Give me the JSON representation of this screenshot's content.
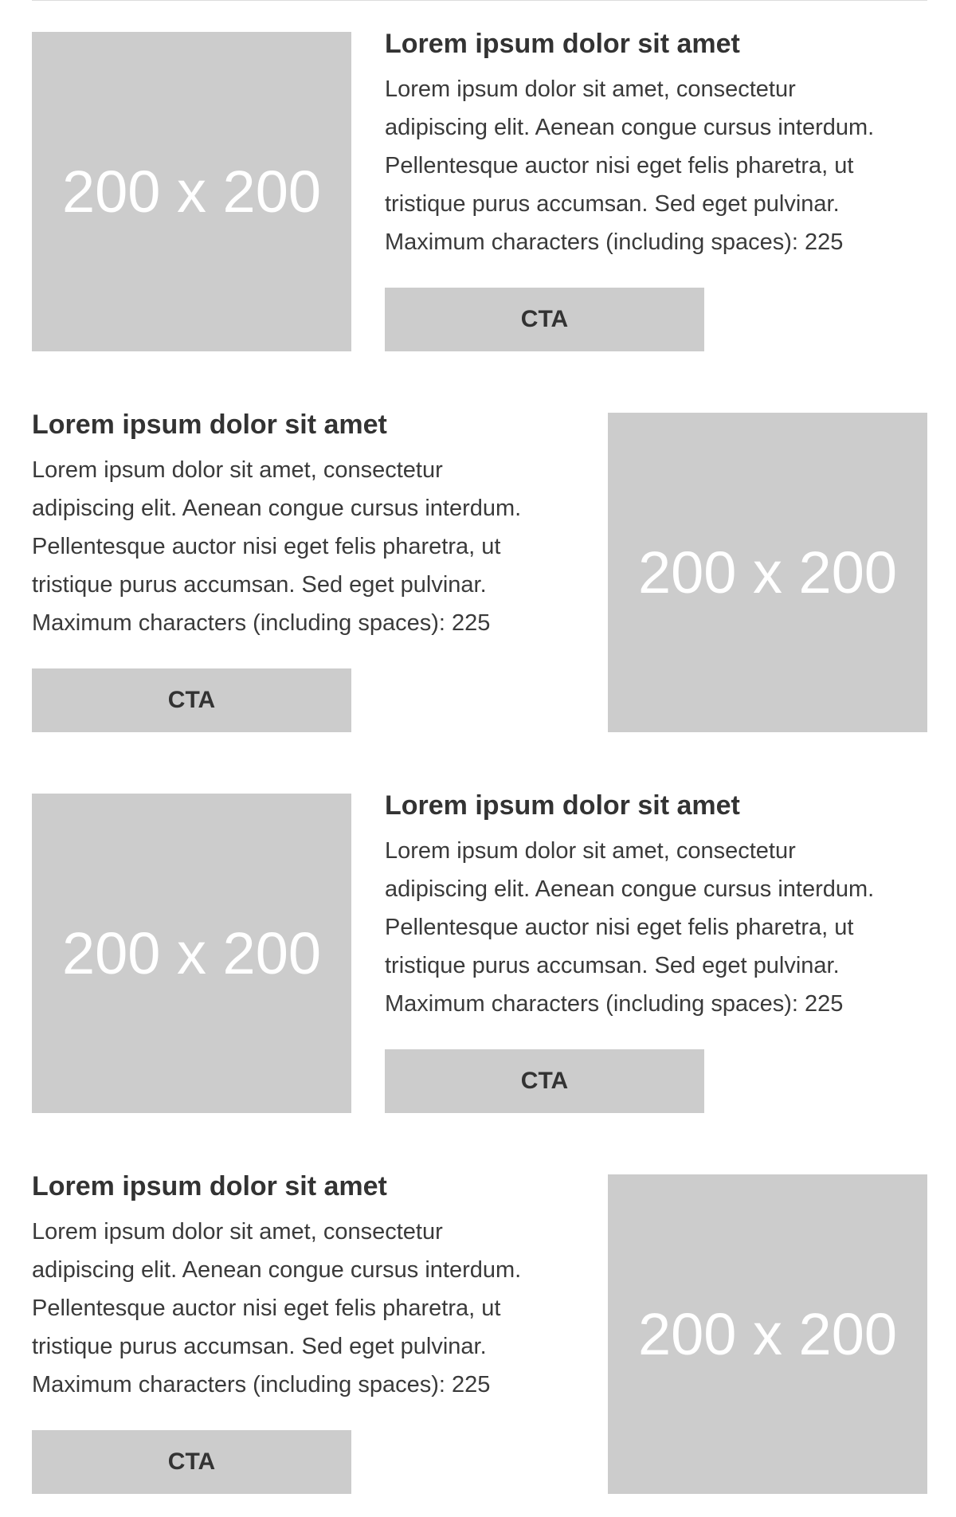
{
  "colors": {
    "placeholder_bg": "#cccccc",
    "placeholder_text": "#ffffff",
    "text": "#333333",
    "button_bg": "#cccccc"
  },
  "blocks": [
    {
      "image_position": "left",
      "image_label": "200 x 200",
      "headline": "Lorem ipsum dolor sit amet",
      "body_lines": [
        "Lorem ipsum dolor sit amet, consectetur",
        "adipiscing elit. Aenean congue cursus interdum.",
        "Pellentesque auctor nisi eget felis pharetra, ut",
        "tristique purus accumsan. Sed eget pulvinar.",
        "Maximum characters (including spaces): 225"
      ],
      "cta_label": "CTA"
    },
    {
      "image_position": "right",
      "image_label": "200 x 200",
      "headline": "Lorem ipsum dolor sit amet",
      "body_lines": [
        "Lorem ipsum dolor sit amet, consectetur",
        "adipiscing elit. Aenean congue cursus interdum.",
        "Pellentesque auctor nisi eget felis pharetra, ut",
        "tristique purus accumsan. Sed eget pulvinar.",
        "Maximum characters (including spaces): 225"
      ],
      "cta_label": "CTA"
    },
    {
      "image_position": "left",
      "image_label": "200 x 200",
      "headline": "Lorem ipsum dolor sit amet",
      "body_lines": [
        "Lorem ipsum dolor sit amet, consectetur",
        "adipiscing elit. Aenean congue cursus interdum.",
        "Pellentesque auctor nisi eget felis pharetra, ut",
        "tristique purus accumsan. Sed eget pulvinar.",
        "Maximum characters (including spaces): 225"
      ],
      "cta_label": "CTA"
    },
    {
      "image_position": "right",
      "image_label": "200 x 200",
      "headline": "Lorem ipsum dolor sit amet",
      "body_lines": [
        "Lorem ipsum dolor sit amet, consectetur",
        "adipiscing elit. Aenean congue cursus interdum.",
        "Pellentesque auctor nisi eget felis pharetra, ut",
        "tristique purus accumsan. Sed eget pulvinar.",
        "Maximum characters (including spaces): 225"
      ],
      "cta_label": "CTA"
    }
  ]
}
